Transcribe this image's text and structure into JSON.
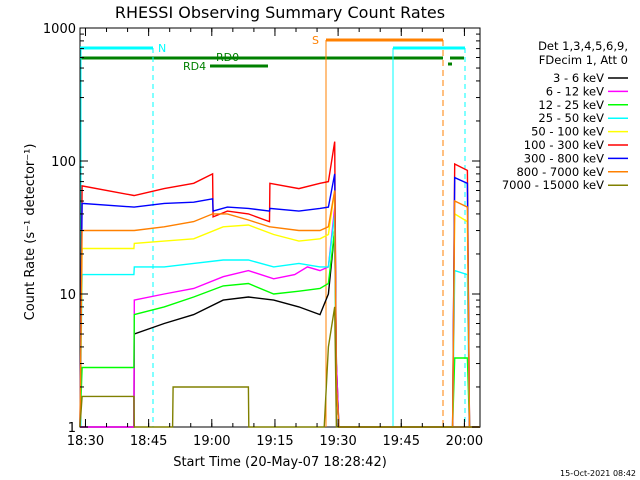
{
  "chart_data": {
    "type": "line",
    "title": "RHESSI Observing Summary Count Rates",
    "xlabel": "Start Time (20-May-07 18:28:42)",
    "ylabel": "Count Rate (s⁻¹ detector⁻¹)",
    "x_range_min": [
      0,
      95
    ],
    "ylim": [
      1,
      1000
    ],
    "yscale": "log",
    "x_ticks": [
      {
        "t": 1.3,
        "label": "18:30"
      },
      {
        "t": 16.3,
        "label": "18:45"
      },
      {
        "t": 31.3,
        "label": "19:00"
      },
      {
        "t": 46.3,
        "label": "19:15"
      },
      {
        "t": 61.3,
        "label": "19:30"
      },
      {
        "t": 76.3,
        "label": "19:45"
      },
      {
        "t": 91.3,
        "label": "20:00"
      }
    ],
    "y_ticks": [
      {
        "v": 1,
        "label": "1"
      },
      {
        "v": 10,
        "label": "10"
      },
      {
        "v": 100,
        "label": "100"
      },
      {
        "v": 1000,
        "label": "1000"
      }
    ],
    "legend": {
      "header": [
        "Det 1,3,4,5,6,9,",
        "FDecim 1, Att 0"
      ],
      "placement": "right"
    },
    "series": [
      {
        "name": "3 - 6 keV",
        "color": "#000000",
        "points": [
          [
            0,
            1
          ],
          [
            12.8,
            1
          ],
          [
            12.9,
            5
          ],
          [
            20,
            6
          ],
          [
            27,
            7
          ],
          [
            34,
            9
          ],
          [
            40,
            9.5
          ],
          [
            46,
            9
          ],
          [
            52,
            8
          ],
          [
            57,
            7
          ],
          [
            59,
            10
          ],
          [
            60.5,
            30
          ],
          [
            60.9,
            3
          ],
          [
            61.5,
            1
          ],
          [
            88.5,
            1
          ],
          [
            89,
            1
          ],
          [
            95,
            1
          ]
        ]
      },
      {
        "name": "6 - 12 keV",
        "color": "#ff00ff",
        "points": [
          [
            0,
            1
          ],
          [
            12.8,
            1
          ],
          [
            12.9,
            9
          ],
          [
            20,
            10
          ],
          [
            27,
            11
          ],
          [
            34,
            13.5
          ],
          [
            40,
            15
          ],
          [
            46,
            13
          ],
          [
            51,
            14
          ],
          [
            54,
            16
          ],
          [
            57,
            15
          ],
          [
            59,
            16
          ],
          [
            60.5,
            45
          ],
          [
            60.9,
            3
          ],
          [
            61.5,
            1
          ],
          [
            95,
            1
          ]
        ]
      },
      {
        "name": "12 - 25 keV",
        "color": "#00ff00",
        "points": [
          [
            0,
            1
          ],
          [
            0.5,
            2.8
          ],
          [
            12.8,
            2.8
          ],
          [
            12.9,
            7
          ],
          [
            20,
            8
          ],
          [
            27,
            9.5
          ],
          [
            34,
            11.5
          ],
          [
            40,
            12
          ],
          [
            46,
            10
          ],
          [
            52,
            10.5
          ],
          [
            57,
            11
          ],
          [
            59,
            12
          ],
          [
            60.5,
            30
          ],
          [
            60.9,
            2
          ],
          [
            61.5,
            1
          ],
          [
            88.5,
            1
          ],
          [
            89,
            3.3
          ],
          [
            92,
            3.3
          ],
          [
            92.5,
            1
          ],
          [
            95,
            1
          ]
        ]
      },
      {
        "name": "25 - 50 keV",
        "color": "#00ffff",
        "points": [
          [
            0,
            1
          ],
          [
            0.5,
            14
          ],
          [
            12.8,
            14
          ],
          [
            12.9,
            16
          ],
          [
            20,
            16
          ],
          [
            27,
            17
          ],
          [
            34,
            18
          ],
          [
            40,
            18
          ],
          [
            46,
            16
          ],
          [
            52,
            17
          ],
          [
            57,
            16
          ],
          [
            59,
            16
          ],
          [
            60.5,
            40
          ],
          [
            60.9,
            2
          ],
          [
            61.5,
            1
          ],
          [
            88.5,
            1
          ],
          [
            89,
            15
          ],
          [
            92,
            14
          ],
          [
            92.5,
            1
          ],
          [
            95,
            1
          ]
        ]
      },
      {
        "name": "50 - 100 keV",
        "color": "#ffff00",
        "points": [
          [
            0,
            1
          ],
          [
            0.5,
            22
          ],
          [
            12.8,
            22
          ],
          [
            12.9,
            24
          ],
          [
            20,
            25
          ],
          [
            27,
            26
          ],
          [
            34,
            32
          ],
          [
            40,
            33
          ],
          [
            46,
            28
          ],
          [
            52,
            25
          ],
          [
            57,
            26
          ],
          [
            59,
            28
          ],
          [
            60.5,
            60
          ],
          [
            60.9,
            2
          ],
          [
            61.5,
            1
          ],
          [
            88.5,
            1
          ],
          [
            89,
            40
          ],
          [
            92,
            35
          ],
          [
            92.5,
            1
          ],
          [
            95,
            1
          ]
        ]
      },
      {
        "name": "100 - 300 keV",
        "color": "#ff0000",
        "points": [
          [
            0,
            1
          ],
          [
            0.5,
            65
          ],
          [
            12.8,
            55
          ],
          [
            12.9,
            55
          ],
          [
            20,
            62
          ],
          [
            27,
            68
          ],
          [
            31.5,
            80
          ],
          [
            31.6,
            38
          ],
          [
            35,
            42
          ],
          [
            40,
            40
          ],
          [
            45,
            35
          ],
          [
            45.1,
            68
          ],
          [
            52,
            62
          ],
          [
            57,
            68
          ],
          [
            59,
            70
          ],
          [
            60.5,
            140
          ],
          [
            60.9,
            2
          ],
          [
            61.5,
            1
          ],
          [
            88.5,
            1
          ],
          [
            89,
            95
          ],
          [
            92,
            85
          ],
          [
            92.5,
            1
          ],
          [
            95,
            1
          ]
        ]
      },
      {
        "name": "300 - 800 keV",
        "color": "#0000ff",
        "points": [
          [
            0,
            1
          ],
          [
            0.5,
            48
          ],
          [
            12.8,
            45
          ],
          [
            12.9,
            45
          ],
          [
            20,
            48
          ],
          [
            27,
            49
          ],
          [
            31.5,
            52
          ],
          [
            31.6,
            42
          ],
          [
            35,
            45
          ],
          [
            40,
            44
          ],
          [
            45,
            42
          ],
          [
            45.1,
            44
          ],
          [
            52,
            42
          ],
          [
            57,
            44
          ],
          [
            59,
            45
          ],
          [
            60.5,
            80
          ],
          [
            60.9,
            2
          ],
          [
            61.5,
            1
          ],
          [
            88.5,
            1
          ],
          [
            89,
            75
          ],
          [
            92,
            68
          ],
          [
            92.5,
            1
          ],
          [
            95,
            1
          ]
        ]
      },
      {
        "name": "800 - 7000 keV",
        "color": "#ff8000",
        "points": [
          [
            0,
            1
          ],
          [
            0.5,
            30
          ],
          [
            12.8,
            30
          ],
          [
            12.9,
            30
          ],
          [
            20,
            32
          ],
          [
            27,
            35
          ],
          [
            31.5,
            40
          ],
          [
            31.6,
            40
          ],
          [
            35,
            40
          ],
          [
            40,
            36
          ],
          [
            45,
            32
          ],
          [
            45.1,
            32
          ],
          [
            52,
            30
          ],
          [
            57,
            30
          ],
          [
            59,
            32
          ],
          [
            60.5,
            60
          ],
          [
            60.9,
            2
          ],
          [
            61.5,
            1
          ],
          [
            88.5,
            1
          ],
          [
            89,
            50
          ],
          [
            92,
            45
          ],
          [
            92.5,
            1
          ],
          [
            95,
            1
          ]
        ]
      },
      {
        "name": "7000 - 15000 keV",
        "color": "#808000",
        "points": [
          [
            0,
            1
          ],
          [
            0.5,
            1.7
          ],
          [
            12.8,
            1.7
          ],
          [
            12.9,
            1
          ],
          [
            22,
            1
          ],
          [
            22.1,
            2
          ],
          [
            40,
            2
          ],
          [
            40.1,
            1
          ],
          [
            58,
            1
          ],
          [
            59,
            4
          ],
          [
            60.5,
            8
          ],
          [
            60.9,
            1
          ],
          [
            95,
            1
          ]
        ]
      }
    ],
    "annotations": [
      {
        "text": "N",
        "color": "#00ffff"
      },
      {
        "text": "RD0",
        "color": "#008000"
      },
      {
        "text": "RD4",
        "color": "#008000"
      },
      {
        "text": "S",
        "color": "#ff8000"
      }
    ],
    "footer_stamp": "15-Oct-2021 08:42"
  }
}
